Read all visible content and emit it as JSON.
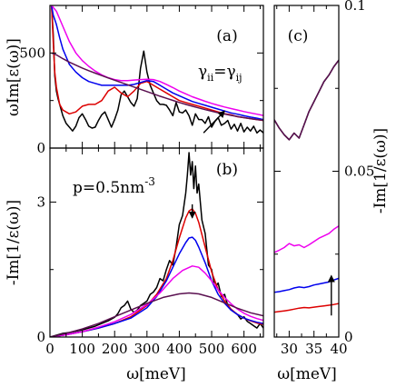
{
  "chart_data": [
    {
      "panel": "(a)",
      "type": "line",
      "xlabel": "",
      "ylabel": "ωIm[ε(ω)]",
      "xlim": [
        0,
        660
      ],
      "ylim": [
        0,
        750
      ],
      "xticks": [
        0,
        100,
        200,
        300,
        400,
        500,
        600
      ],
      "yticks": [
        0,
        500
      ],
      "ytick_labels": [
        "0",
        "500"
      ],
      "annotation": "γii=γij",
      "arrow": {
        "from": [
          475,
          80
        ],
        "to": [
          540,
          195
        ]
      },
      "series": [
        {
          "color": "#000000",
          "x": [
            5,
            10,
            15,
            20,
            25,
            30,
            40,
            50,
            60,
            70,
            80,
            90,
            100,
            110,
            120,
            130,
            140,
            150,
            160,
            170,
            180,
            190,
            200,
            210,
            220,
            230,
            240,
            250,
            260,
            270,
            280,
            290,
            300,
            310,
            320,
            330,
            340,
            350,
            360,
            370,
            380,
            390,
            400,
            410,
            420,
            430,
            440,
            450,
            460,
            470,
            480,
            490,
            500,
            510,
            520,
            530,
            540,
            550,
            560,
            570,
            580,
            590,
            600,
            610,
            620,
            630,
            640,
            650,
            660
          ],
          "y": [
            750,
            600,
            380,
            300,
            260,
            230,
            170,
            130,
            110,
            90,
            115,
            160,
            180,
            150,
            115,
            105,
            110,
            145,
            175,
            190,
            150,
            110,
            150,
            200,
            280,
            300,
            270,
            240,
            220,
            260,
            420,
            510,
            400,
            330,
            290,
            250,
            230,
            230,
            225,
            200,
            170,
            240,
            190,
            185,
            200,
            170,
            120,
            180,
            150,
            150,
            130,
            165,
            110,
            140,
            160,
            120,
            130,
            145,
            100,
            125,
            90,
            130,
            85,
            110,
            90,
            115,
            80,
            95,
            80
          ]
        },
        {
          "color": "#dd0000",
          "x": [
            5,
            10,
            15,
            20,
            30,
            40,
            60,
            80,
            100,
            120,
            140,
            160,
            180,
            200,
            220,
            240,
            260,
            280,
            300,
            320,
            340,
            360,
            380,
            400,
            420,
            440,
            460,
            480,
            500,
            520,
            540,
            560,
            580,
            600,
            620,
            640,
            660
          ],
          "y": [
            750,
            560,
            400,
            320,
            230,
            200,
            180,
            190,
            220,
            230,
            230,
            250,
            300,
            320,
            290,
            270,
            300,
            340,
            350,
            330,
            310,
            290,
            270,
            250,
            240,
            230,
            220,
            210,
            200,
            190,
            180,
            175,
            165,
            160,
            155,
            150,
            145
          ]
        },
        {
          "color": "#0000ee",
          "x": [
            5,
            10,
            20,
            30,
            40,
            50,
            60,
            80,
            100,
            120,
            140,
            160,
            180,
            200,
            220,
            240,
            260,
            280,
            300,
            320,
            340,
            360,
            380,
            400,
            420,
            440,
            460,
            480,
            500,
            520,
            540,
            560,
            580,
            600,
            620,
            640,
            660
          ],
          "y": [
            750,
            700,
            650,
            580,
            520,
            480,
            440,
            400,
            370,
            350,
            340,
            330,
            330,
            330,
            330,
            330,
            335,
            345,
            355,
            350,
            330,
            310,
            290,
            275,
            260,
            245,
            235,
            225,
            215,
            205,
            195,
            185,
            178,
            170,
            163,
            157,
            150
          ]
        },
        {
          "color": "#ee00ee",
          "x": [
            5,
            20,
            40,
            60,
            80,
            100,
            120,
            140,
            160,
            180,
            200,
            220,
            240,
            260,
            280,
            300,
            320,
            340,
            360,
            380,
            400,
            420,
            440,
            460,
            480,
            500,
            520,
            540,
            560,
            580,
            600,
            620,
            640,
            660
          ],
          "y": [
            750,
            720,
            640,
            560,
            500,
            460,
            430,
            405,
            385,
            370,
            360,
            355,
            355,
            358,
            360,
            362,
            360,
            350,
            335,
            318,
            300,
            285,
            270,
            258,
            246,
            235,
            225,
            216,
            208,
            200,
            192,
            185,
            178,
            171
          ]
        },
        {
          "color": "#5a1050",
          "x": [
            5,
            20,
            40,
            60,
            80,
            100,
            120,
            140,
            160,
            180,
            200,
            220,
            240,
            260,
            280,
            300,
            320,
            340,
            360,
            380,
            400,
            420,
            440,
            460,
            480,
            500,
            520,
            540,
            560,
            580,
            600,
            620,
            640,
            660
          ],
          "y": [
            500,
            490,
            470,
            452,
            436,
            421,
            407,
            394,
            381,
            369,
            357,
            345,
            333,
            321,
            309,
            297,
            285,
            273,
            262,
            251,
            240,
            230,
            220,
            211,
            202,
            194,
            186,
            179,
            172,
            166,
            160,
            155,
            150,
            146
          ]
        }
      ]
    },
    {
      "panel": "(b)",
      "type": "line",
      "xlabel": "ω[meV]",
      "ylabel": "-Im[1/ε(ω)]",
      "xlim": [
        0,
        660
      ],
      "ylim": [
        0,
        4.2
      ],
      "xticks": [
        0,
        100,
        200,
        300,
        400,
        500,
        600
      ],
      "xtick_labels": [
        "0",
        "100",
        "200",
        "300",
        "400",
        "500",
        "600"
      ],
      "yticks": [
        0,
        3
      ],
      "ytick_labels": [
        "0",
        "3"
      ],
      "annotation": "p=0.5nm",
      "annotation_sup": "-3",
      "arrow": {
        "from": [
          440,
          2.95
        ],
        "to": [
          440,
          2.65
        ]
      },
      "series": [
        {
          "color": "#000000",
          "x": [
            0,
            20,
            40,
            60,
            80,
            100,
            120,
            140,
            160,
            180,
            200,
            210,
            220,
            230,
            240,
            250,
            260,
            270,
            280,
            290,
            300,
            310,
            320,
            330,
            340,
            350,
            360,
            370,
            380,
            390,
            400,
            410,
            420,
            425,
            430,
            435,
            440,
            445,
            450,
            455,
            460,
            470,
            480,
            490,
            500,
            510,
            520,
            530,
            540,
            550,
            560,
            570,
            580,
            590,
            600,
            610,
            620,
            630,
            640,
            650,
            660
          ],
          "y": [
            0,
            0.04,
            0.08,
            0.1,
            0.13,
            0.16,
            0.2,
            0.24,
            0.3,
            0.36,
            0.44,
            0.52,
            0.65,
            0.7,
            0.8,
            0.62,
            0.55,
            0.6,
            0.7,
            0.75,
            0.8,
            0.95,
            1.0,
            1.1,
            1.3,
            1.25,
            1.5,
            1.7,
            1.6,
            2.0,
            2.5,
            2.7,
            3.2,
            3.6,
            4.1,
            3.6,
            3.9,
            3.3,
            3.8,
            3.2,
            3.4,
            2.6,
            2.3,
            1.6,
            1.5,
            1.1,
            1.2,
            0.9,
            0.95,
            0.7,
            0.6,
            0.55,
            0.5,
            0.4,
            0.45,
            0.35,
            0.3,
            0.25,
            0.2,
            0.3,
            0.2
          ]
        },
        {
          "color": "#dd0000",
          "x": [
            0,
            50,
            100,
            150,
            200,
            250,
            300,
            330,
            360,
            380,
            400,
            420,
            430,
            440,
            450,
            460,
            480,
            500,
            520,
            540,
            560,
            580,
            600,
            620,
            640,
            660
          ],
          "y": [
            0,
            0.05,
            0.12,
            0.2,
            0.3,
            0.45,
            0.7,
            0.95,
            1.3,
            1.7,
            2.2,
            2.65,
            2.8,
            2.85,
            2.75,
            2.55,
            2.0,
            1.45,
            1.05,
            0.8,
            0.62,
            0.5,
            0.42,
            0.36,
            0.31,
            0.28
          ]
        },
        {
          "color": "#0000ee",
          "x": [
            0,
            50,
            100,
            150,
            200,
            250,
            300,
            330,
            360,
            380,
            400,
            420,
            430,
            440,
            450,
            460,
            480,
            500,
            520,
            540,
            560,
            580,
            600,
            620,
            640,
            660
          ],
          "y": [
            0,
            0.05,
            0.12,
            0.2,
            0.3,
            0.42,
            0.65,
            0.9,
            1.25,
            1.55,
            1.85,
            2.1,
            2.2,
            2.22,
            2.15,
            2.0,
            1.65,
            1.25,
            0.95,
            0.75,
            0.6,
            0.5,
            0.42,
            0.37,
            0.33,
            0.3
          ]
        },
        {
          "color": "#ee00ee",
          "x": [
            0,
            50,
            100,
            150,
            200,
            250,
            300,
            340,
            380,
            410,
            440,
            460,
            480,
            500,
            520,
            540,
            560,
            580,
            600,
            620,
            640,
            660
          ],
          "y": [
            0,
            0.05,
            0.12,
            0.22,
            0.34,
            0.5,
            0.72,
            0.98,
            1.3,
            1.48,
            1.58,
            1.55,
            1.42,
            1.25,
            1.05,
            0.88,
            0.74,
            0.62,
            0.53,
            0.46,
            0.41,
            0.37
          ]
        },
        {
          "color": "#5a1050",
          "x": [
            0,
            50,
            100,
            150,
            200,
            250,
            300,
            350,
            400,
            430,
            460,
            500,
            540,
            580,
            620,
            660
          ],
          "y": [
            0,
            0.08,
            0.18,
            0.3,
            0.45,
            0.6,
            0.75,
            0.88,
            0.96,
            0.98,
            0.96,
            0.88,
            0.76,
            0.64,
            0.54,
            0.47
          ]
        }
      ]
    },
    {
      "panel": "(c)",
      "type": "line",
      "xlabel": "ω[meV]",
      "ylabel": "-Im[1/ε(ω)]",
      "xlim": [
        27,
        40
      ],
      "ylim": [
        0,
        0.1
      ],
      "xticks": [
        30,
        35,
        40
      ],
      "xtick_labels": [
        "30",
        "35",
        "40"
      ],
      "yticks": [
        0,
        0.05,
        0.1
      ],
      "ytick_labels": [
        "0",
        "0.05",
        "0.1"
      ],
      "arrow": {
        "from": [
          38.5,
          0.0065
        ],
        "to": [
          38.5,
          0.0185
        ]
      },
      "series": [
        {
          "color": "#000000",
          "x": [
            27,
            28,
            29,
            30,
            31,
            32,
            33,
            34,
            35,
            36,
            37,
            38,
            39,
            40
          ],
          "y": [
            0.0655,
            0.063,
            0.061,
            0.0595,
            0.0615,
            0.06,
            0.064,
            0.068,
            0.071,
            0.074,
            0.077,
            0.079,
            0.0815,
            0.0835
          ]
        },
        {
          "color": "#5a1050",
          "x": [
            27,
            28,
            29,
            30,
            31,
            32,
            33,
            34,
            35,
            36,
            37,
            38,
            39,
            40
          ],
          "y": [
            0.0655,
            0.063,
            0.061,
            0.0595,
            0.0615,
            0.06,
            0.064,
            0.068,
            0.071,
            0.074,
            0.077,
            0.079,
            0.0815,
            0.0835
          ]
        },
        {
          "color": "#ee00ee",
          "x": [
            27,
            28,
            29,
            30,
            31,
            32,
            33,
            34,
            35,
            36,
            37,
            38,
            39,
            40
          ],
          "y": [
            0.0255,
            0.0262,
            0.027,
            0.0282,
            0.0275,
            0.0278,
            0.027,
            0.0278,
            0.0288,
            0.0298,
            0.0305,
            0.0312,
            0.0325,
            0.0335
          ]
        },
        {
          "color": "#0000ee",
          "x": [
            27,
            28,
            29,
            30,
            31,
            32,
            33,
            34,
            35,
            36,
            37,
            38,
            39,
            40
          ],
          "y": [
            0.0135,
            0.0137,
            0.014,
            0.0143,
            0.0148,
            0.0151,
            0.0149,
            0.0152,
            0.0157,
            0.016,
            0.0163,
            0.0166,
            0.0172,
            0.0177
          ]
        },
        {
          "color": "#dd0000",
          "x": [
            27,
            28,
            29,
            30,
            31,
            32,
            33,
            34,
            35,
            36,
            37,
            38,
            39,
            40
          ],
          "y": [
            0.0075,
            0.0077,
            0.0079,
            0.0081,
            0.0084,
            0.0087,
            0.0089,
            0.0088,
            0.009,
            0.0092,
            0.0094,
            0.0096,
            0.0098,
            0.0101
          ]
        }
      ]
    }
  ]
}
